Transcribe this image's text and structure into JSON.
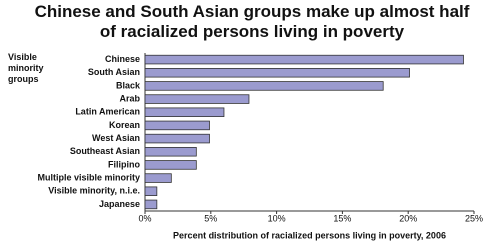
{
  "chart_data": {
    "type": "bar",
    "orientation": "horizontal",
    "title": "Chinese and South Asian groups make up almost half of racialized persons living in poverty",
    "y_label": "Visible minority groups",
    "x_label": "Percent distribution of racialized persons living in poverty, 2006",
    "categories": [
      "Chinese",
      "South Asian",
      "Black",
      "Arab",
      "Latin American",
      "Korean",
      "West Asian",
      "Southeast Asian",
      "Filipino",
      "Multiple visible minority",
      "Visible minority, n.i.e.",
      "Japanese"
    ],
    "values": [
      24.2,
      20.1,
      18.1,
      7.9,
      6.0,
      4.9,
      4.9,
      3.9,
      3.9,
      2.0,
      0.9,
      0.9
    ],
    "color": "#9b9bcf",
    "xlim": [
      0,
      25
    ],
    "xticks": [
      {
        "value": 0,
        "label": "0%"
      },
      {
        "value": 5,
        "label": "5%"
      },
      {
        "value": 10,
        "label": "10%"
      },
      {
        "value": 15,
        "label": "15%"
      },
      {
        "value": 20,
        "label": "20%"
      },
      {
        "value": 25,
        "label": "25%"
      }
    ]
  }
}
